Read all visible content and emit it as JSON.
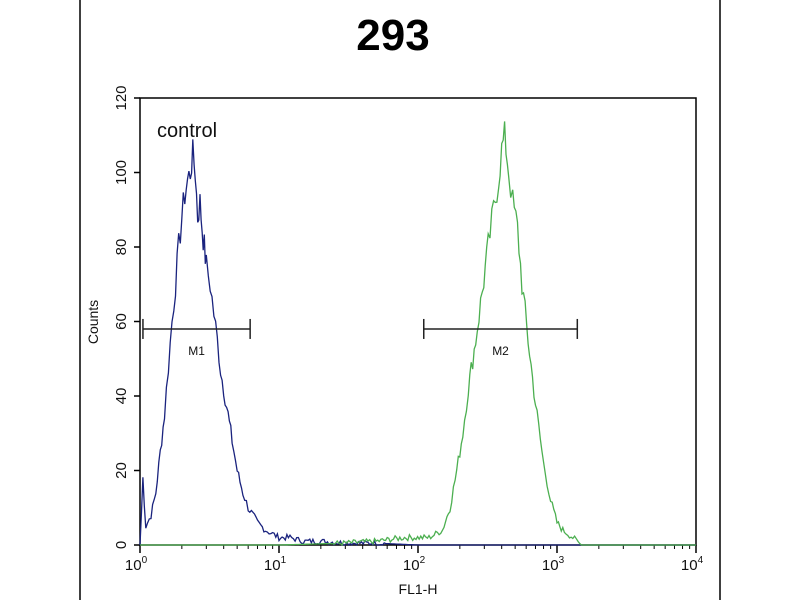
{
  "chart_data": {
    "type": "line",
    "title": "293",
    "xlabel": "FL1-H",
    "ylabel": "Counts",
    "x_scale": "log",
    "xlim": [
      1,
      10000
    ],
    "ylim": [
      0,
      120
    ],
    "x_ticks": [
      {
        "value": 1,
        "base": "10",
        "exp": "0"
      },
      {
        "value": 10,
        "base": "10",
        "exp": "1"
      },
      {
        "value": 100,
        "base": "10",
        "exp": "2"
      },
      {
        "value": 1000,
        "base": "10",
        "exp": "3"
      },
      {
        "value": 10000,
        "base": "10",
        "exp": "4"
      }
    ],
    "y_ticks": [
      0,
      20,
      40,
      60,
      80,
      100,
      120
    ],
    "grid": false,
    "annotations": [
      {
        "text": "control"
      }
    ],
    "markers": [
      {
        "label": "M1",
        "x_start": 1.05,
        "x_end": 6.2,
        "y": 58
      },
      {
        "label": "M2",
        "x_start": 110,
        "x_end": 1400,
        "y": 58
      }
    ],
    "series": [
      {
        "color": "#1a237e",
        "x": [
          1,
          1.05,
          1.1,
          1.2,
          1.3,
          1.4,
          1.5,
          1.6,
          1.7,
          1.8,
          1.9,
          2.0,
          2.1,
          2.2,
          2.3,
          2.4,
          2.5,
          2.6,
          2.7,
          2.8,
          2.9,
          3.0,
          3.2,
          3.4,
          3.6,
          3.8,
          4.0,
          4.3,
          4.6,
          5.0,
          5.5,
          6.0,
          6.5,
          7.0,
          8.0,
          9.0,
          10,
          12,
          15,
          20,
          30,
          50,
          100,
          200,
          1000,
          10000
        ],
        "y": [
          0,
          18,
          5,
          8,
          14,
          25,
          35,
          48,
          60,
          70,
          80,
          88,
          94,
          98,
          100,
          105,
          100,
          88,
          92,
          85,
          80,
          75,
          70,
          62,
          55,
          47,
          42,
          35,
          28,
          20,
          14,
          10,
          8,
          6,
          4,
          3,
          2,
          2,
          1,
          1,
          0.5,
          0.5,
          0,
          0,
          0,
          0
        ]
      },
      {
        "color": "#4caf50",
        "x": [
          1,
          10,
          30,
          50,
          80,
          120,
          150,
          170,
          190,
          210,
          230,
          260,
          290,
          320,
          350,
          380,
          400,
          420,
          450,
          480,
          520,
          560,
          620,
          700,
          800,
          900,
          1000,
          1100,
          1300,
          1500,
          2000,
          10000
        ],
        "y": [
          0,
          0,
          0.5,
          1,
          2,
          2,
          4,
          10,
          20,
          30,
          42,
          55,
          68,
          80,
          90,
          98,
          106,
          110,
          100,
          92,
          85,
          70,
          55,
          38,
          22,
          12,
          6,
          4,
          2,
          0,
          0,
          0
        ]
      }
    ]
  }
}
